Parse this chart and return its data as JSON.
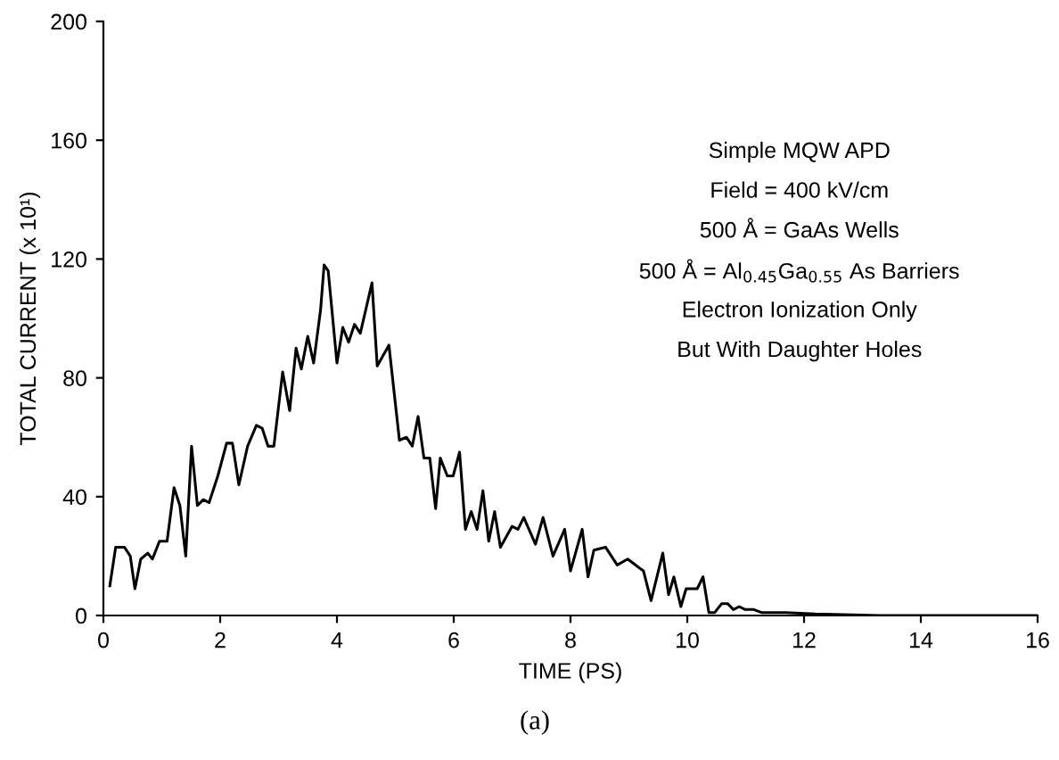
{
  "chart_data": {
    "type": "line",
    "xlabel": "TIME (PS)",
    "ylabel": "TOTAL CURRENT (x 10¹)",
    "annotations": [
      "Simple MQW APD",
      "Field = 400 kV/cm",
      "500 Å = GaAs Wells",
      "500 Å = Al$_{0.45}$Ga$_{0.55}$ As Barriers",
      "Electron Ionization Only",
      "But With Daughter Holes",
      "(a)"
    ],
    "x": [
      0.11,
      0.21,
      0.36,
      0.46,
      0.54,
      0.64,
      0.76,
      0.84,
      0.96,
      1.09,
      1.21,
      1.31,
      1.41,
      1.51,
      1.61,
      1.71,
      1.81,
      1.96,
      2.11,
      2.21,
      2.32,
      2.47,
      2.62,
      2.72,
      2.82,
      2.92,
      3.07,
      3.19,
      3.3,
      3.39,
      3.5,
      3.6,
      3.72,
      3.78,
      3.85,
      4.0,
      4.1,
      4.2,
      4.3,
      4.4,
      4.6,
      4.69,
      4.89,
      5.07,
      5.19,
      5.29,
      5.39,
      5.49,
      5.59,
      5.69,
      5.77,
      5.89,
      5.99,
      6.1,
      6.2,
      6.3,
      6.4,
      6.5,
      6.6,
      6.7,
      6.8,
      7.0,
      7.1,
      7.2,
      7.4,
      7.53,
      7.7,
      7.9,
      8.0,
      8.2,
      8.3,
      8.4,
      8.6,
      8.8,
      8.98,
      9.18,
      9.25,
      9.38,
      9.58,
      9.68,
      9.77,
      9.89,
      9.98,
      10.17,
      10.27,
      10.37,
      10.47,
      10.59,
      10.69,
      10.79,
      10.89,
      10.99,
      11.14,
      11.27,
      11.69,
      12.19,
      13.3,
      16
    ],
    "values": [
      10,
      23,
      23,
      20,
      9,
      19,
      21,
      19,
      25,
      25,
      43,
      37,
      20,
      57,
      37,
      39,
      38,
      47,
      58,
      58,
      44,
      57,
      64,
      63,
      57,
      57,
      82,
      69,
      90,
      83,
      94,
      85,
      103,
      118,
      116,
      85,
      97,
      92,
      98,
      95,
      112,
      84,
      91,
      59,
      60,
      57,
      67,
      53,
      53,
      36,
      53,
      47,
      47,
      55,
      29,
      35,
      29,
      42,
      25,
      35,
      23,
      30,
      29,
      33,
      24,
      33,
      20,
      29,
      15,
      29,
      13,
      22,
      23,
      17,
      19,
      16,
      15,
      5,
      21,
      7,
      13,
      3,
      9,
      9,
      13,
      1,
      1,
      4,
      4,
      2,
      3,
      2,
      2,
      1,
      1,
      0.5,
      0,
      0
    ],
    "color": "#000000",
    "xlim": [
      0,
      16
    ],
    "ylim": [
      0,
      200
    ],
    "xticks": [
      0,
      2,
      4,
      6,
      8,
      10,
      12,
      14,
      16
    ],
    "yticks": [
      0,
      40,
      80,
      120,
      160,
      200
    ],
    "grid": false,
    "legend": false
  }
}
